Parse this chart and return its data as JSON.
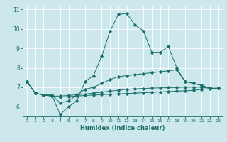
{
  "title": "",
  "xlabel": "Humidex (Indice chaleur)",
  "bg_color": "#cce8ec",
  "grid_color": "#ffffff",
  "line_color": "#1a6e6a",
  "xlim": [
    -0.5,
    23.5
  ],
  "ylim": [
    5.5,
    11.2
  ],
  "yticks": [
    6,
    7,
    8,
    9,
    10,
    11
  ],
  "xticks": [
    0,
    1,
    2,
    3,
    4,
    5,
    6,
    7,
    8,
    9,
    10,
    11,
    12,
    13,
    14,
    15,
    16,
    17,
    18,
    19,
    20,
    21,
    22,
    23
  ],
  "series": [
    [
      7.3,
      6.7,
      6.6,
      6.6,
      5.6,
      6.0,
      6.3,
      7.3,
      7.6,
      8.6,
      9.9,
      10.75,
      10.8,
      10.2,
      9.9,
      8.8,
      8.8,
      9.1,
      8.0,
      7.3,
      7.2,
      7.1,
      6.95,
      6.95
    ],
    [
      7.3,
      6.7,
      6.6,
      6.6,
      6.2,
      6.3,
      6.6,
      6.9,
      7.0,
      7.2,
      7.4,
      7.55,
      7.6,
      7.65,
      7.7,
      7.75,
      7.8,
      7.85,
      7.9,
      7.3,
      7.2,
      7.1,
      6.95,
      6.95
    ],
    [
      7.3,
      6.7,
      6.6,
      6.55,
      6.55,
      6.58,
      6.62,
      6.65,
      6.7,
      6.75,
      6.8,
      6.85,
      6.9,
      6.92,
      6.94,
      6.96,
      6.97,
      6.98,
      6.99,
      7.0,
      7.0,
      7.0,
      6.95,
      6.95
    ],
    [
      7.3,
      6.7,
      6.6,
      6.55,
      6.5,
      6.52,
      6.55,
      6.58,
      6.6,
      6.62,
      6.64,
      6.66,
      6.68,
      6.7,
      6.72,
      6.74,
      6.76,
      6.78,
      6.8,
      6.82,
      6.84,
      6.9,
      6.93,
      6.95
    ]
  ],
  "xlabel_fontsize": 6.0,
  "tick_fontsize_x": 4.5,
  "tick_fontsize_y": 5.5
}
